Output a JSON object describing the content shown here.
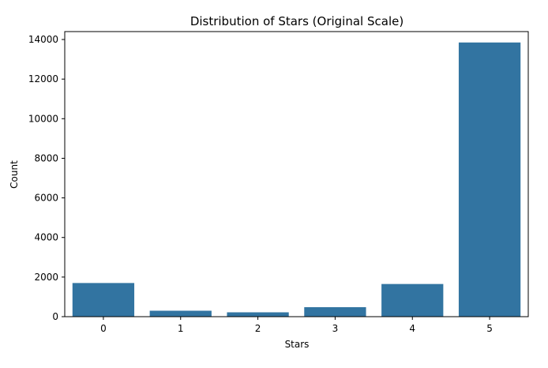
{
  "chart_data": {
    "type": "bar",
    "title": "Distribution of Stars (Original Scale)",
    "xlabel": "Stars",
    "ylabel": "Count",
    "categories": [
      "0",
      "1",
      "2",
      "3",
      "4",
      "5"
    ],
    "values": [
      1700,
      300,
      220,
      480,
      1650,
      13850
    ],
    "ylim": [
      0,
      14400
    ],
    "yticks": [
      0,
      2000,
      4000,
      6000,
      8000,
      10000,
      12000,
      14000
    ],
    "ytick_labels": [
      "0",
      "2000",
      "4000",
      "6000",
      "8000",
      "10000",
      "12000",
      "14000"
    ],
    "grid": false,
    "legend": "none",
    "bar_color": "#3274a1"
  }
}
